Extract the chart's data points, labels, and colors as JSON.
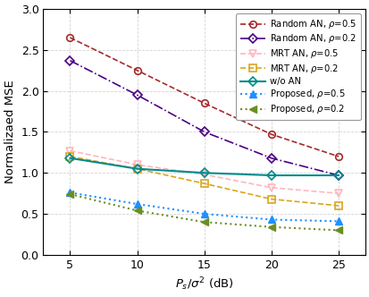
{
  "x": [
    5,
    10,
    15,
    20,
    25
  ],
  "random_an_05": [
    2.65,
    2.25,
    1.85,
    1.47,
    1.2
  ],
  "random_an_02": [
    2.37,
    1.95,
    1.5,
    1.18,
    0.97
  ],
  "mrt_an_05": [
    1.27,
    1.1,
    0.98,
    0.82,
    0.75
  ],
  "mrt_an_02": [
    1.2,
    1.05,
    0.87,
    0.68,
    0.6
  ],
  "wo_an": [
    1.18,
    1.05,
    1.0,
    0.97,
    0.97
  ],
  "proposed_05": [
    0.76,
    0.62,
    0.5,
    0.43,
    0.41
  ],
  "proposed_02": [
    0.74,
    0.54,
    0.4,
    0.34,
    0.3
  ],
  "colors": {
    "random_an_05": "#A52A2A",
    "random_an_02": "#4B0082",
    "mrt_an_05": "#FFB6C1",
    "mrt_an_02": "#DAA520",
    "wo_an": "#008B8B",
    "proposed_05": "#1E90FF",
    "proposed_02": "#6B8E23"
  },
  "xlabel": "$P_s/\\sigma^2$ (dB)",
  "ylabel": "Normalizaed MSE",
  "xlim": [
    3,
    27
  ],
  "ylim": [
    0,
    3
  ],
  "yticks": [
    0,
    0.5,
    1.0,
    1.5,
    2.0,
    2.5,
    3.0
  ],
  "xticks": [
    5,
    10,
    15,
    20,
    25
  ],
  "grid_color": "#D3D3D3",
  "legend_labels": [
    "Random AN, ρ=0.5",
    "Random AN, ρ=0.2",
    "MRT AN, ρ=0.5",
    "MRT AN, ρ=0.2",
    "w/o AN",
    "Proposed, ρ=0.5",
    "Proposed, ρ=0.2"
  ]
}
